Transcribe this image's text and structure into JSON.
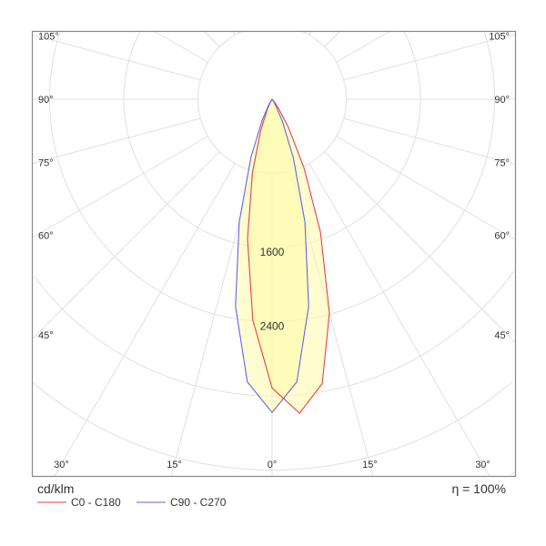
{
  "chart_data": {
    "type": "polar",
    "unit_label": "cd/klm",
    "efficiency_label": "η = 100%",
    "ring_step": 800,
    "ring_labels": [
      "1600",
      "2400"
    ],
    "ring_label_values": [
      1600,
      2400
    ],
    "rmax": 4000,
    "angle_labels_left": [
      "105°",
      "90°",
      "75°",
      "60°",
      "45°"
    ],
    "angle_labels_left_values": [
      105,
      90,
      75,
      60,
      45
    ],
    "angle_labels_bottom": [
      "30°",
      "15°",
      "0°",
      "15°",
      "30°"
    ],
    "angle_labels_bottom_values": [
      -30,
      -15,
      0,
      15,
      30
    ],
    "series": [
      {
        "name": "C0 - C180",
        "color": "#e8414a",
        "angles": [
          -30,
          -25,
          -20,
          -15,
          -10,
          -5,
          0,
          5,
          10,
          15,
          20,
          25,
          30,
          35,
          40
        ],
        "values": [
          40,
          124,
          355,
          814,
          1528,
          2390,
          3115,
          3400,
          3115,
          2390,
          1528,
          814,
          355,
          124,
          40
        ]
      },
      {
        "name": "C90 - C270",
        "color": "#6464e6",
        "angles": [
          -35,
          -30,
          -25,
          -20,
          -15,
          -10,
          -5,
          0,
          5,
          10,
          15,
          20,
          25,
          30,
          35
        ],
        "values": [
          20,
          80,
          260,
          670,
          1370,
          2270,
          3060,
          3380,
          3060,
          2270,
          1370,
          670,
          260,
          80,
          20
        ]
      }
    ],
    "fill_color": "#fff9a8"
  }
}
